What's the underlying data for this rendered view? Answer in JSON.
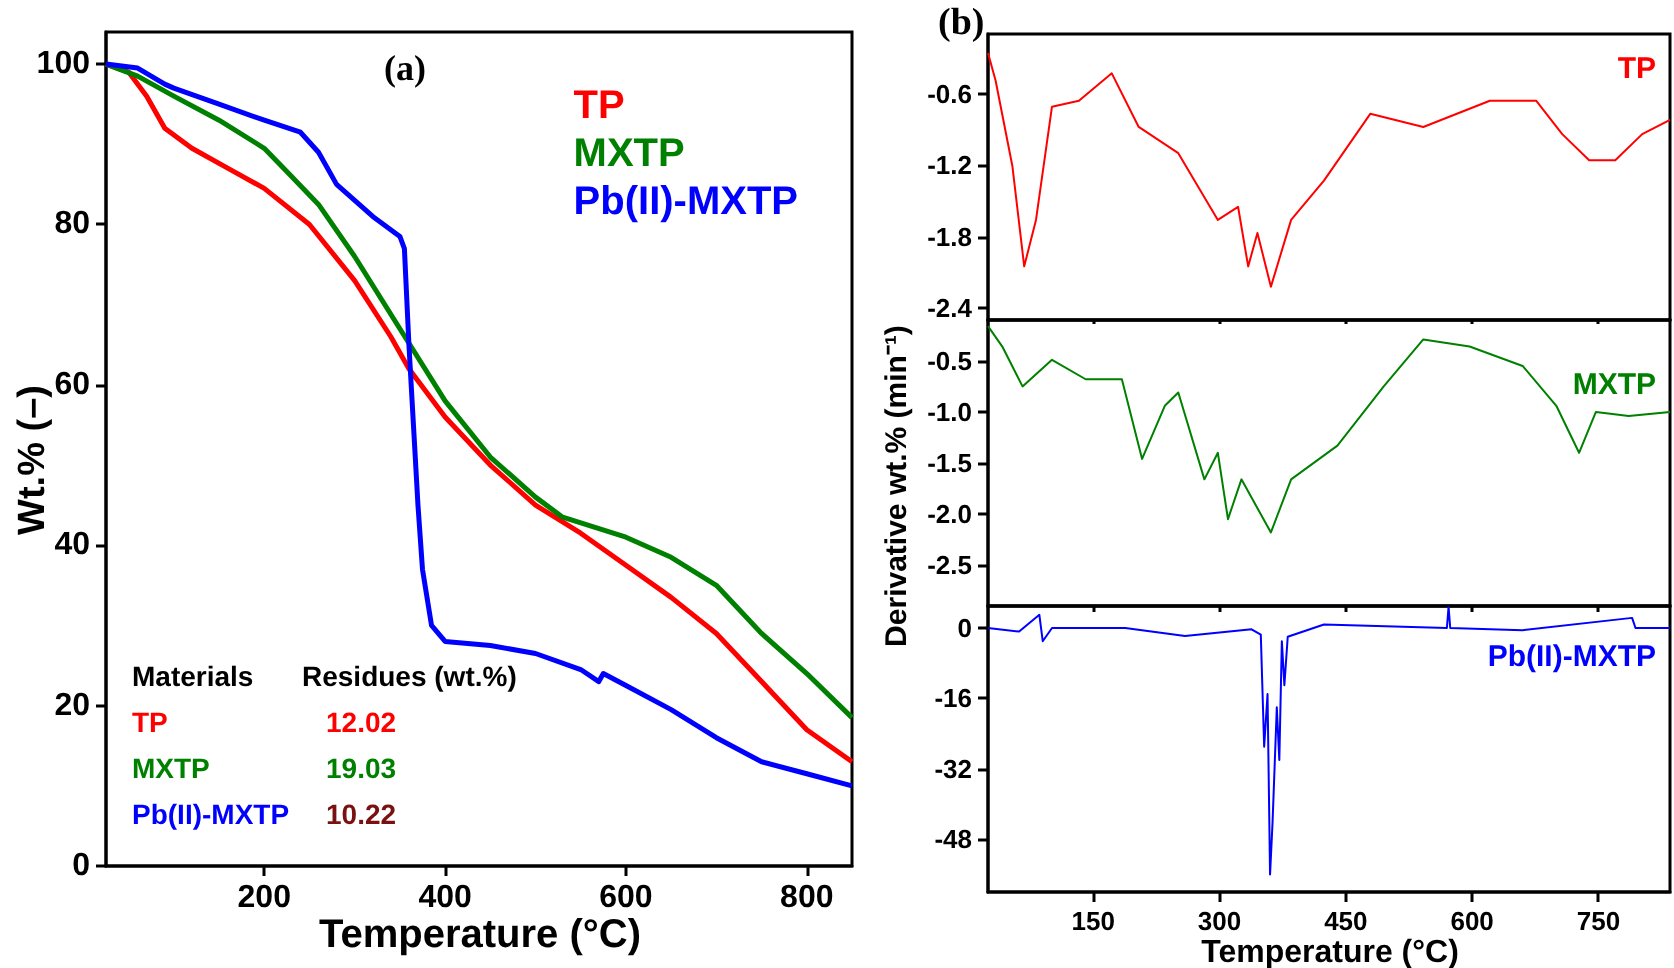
{
  "chart_data": [
    {
      "type": "line",
      "title": "(a)",
      "xlabel": "Temperature (°C)",
      "ylabel": "Wt.% (–)",
      "xlim": [
        25,
        850
      ],
      "ylim": [
        0,
        104
      ],
      "xticks": [
        200,
        400,
        600,
        800
      ],
      "yticks": [
        0,
        20,
        40,
        60,
        80,
        100
      ],
      "grid": false,
      "legend": "top right",
      "marker": "none",
      "annotations": [
        "Materials",
        "Residues (wt.%)",
        "TP",
        "12.02",
        "MXTP",
        "19.03",
        "Pb(II)-MXTP",
        "10.22"
      ],
      "series": [
        {
          "name": "TP",
          "color": "#ff0000",
          "x": [
            25,
            50,
            70,
            90,
            120,
            160,
            200,
            250,
            300,
            340,
            360,
            400,
            450,
            500,
            550,
            600,
            650,
            700,
            750,
            800,
            850
          ],
          "values": [
            100,
            99,
            96,
            92,
            89.5,
            87,
            84.5,
            80,
            73,
            66,
            62,
            56,
            50,
            45,
            41.5,
            37.5,
            33.5,
            29,
            23,
            17,
            13
          ]
        },
        {
          "name": "MXTP",
          "color": "#008000",
          "x": [
            25,
            60,
            100,
            150,
            200,
            230,
            260,
            300,
            350,
            400,
            450,
            500,
            530,
            600,
            650,
            700,
            750,
            800,
            850
          ],
          "values": [
            100,
            98.5,
            96,
            93,
            89.5,
            86,
            82.5,
            76,
            67,
            58,
            51,
            46,
            43.5,
            41,
            38.5,
            35,
            29,
            24,
            18.5
          ]
        },
        {
          "name": "Pb(II)-MXTP",
          "color": "#0000ff",
          "x": [
            25,
            60,
            90,
            100,
            150,
            200,
            240,
            260,
            280,
            320,
            350,
            355,
            360,
            365,
            370,
            375,
            385,
            400,
            450,
            500,
            550,
            570,
            575,
            600,
            650,
            700,
            750,
            800,
            850
          ],
          "values": [
            100,
            99.5,
            97.5,
            97,
            95,
            93,
            91.5,
            89,
            85,
            81,
            78.5,
            77,
            65,
            55,
            45,
            37,
            30,
            28,
            27.5,
            26.5,
            24.5,
            23,
            24,
            22.5,
            19.5,
            16,
            13,
            11.5,
            10
          ]
        }
      ]
    },
    {
      "type": "line",
      "title": "(b)",
      "xlim": [
        25,
        835
      ],
      "ylim": [
        -2.5,
        -0.1
      ],
      "xticks": [
        150,
        300,
        450,
        600,
        750
      ],
      "yticks": [
        -0.6,
        -1.2,
        -1.8,
        -2.4
      ],
      "tick_labels": "y",
      "grid": false,
      "legend": "top right",
      "marker": "none",
      "series": [
        {
          "name": "TP",
          "color": "#ff0000",
          "x": [
            25,
            34,
            54,
            68,
            82,
            101,
            133,
            172,
            204,
            251,
            298,
            322,
            334,
            345,
            361,
            385,
            424,
            479,
            542,
            621,
            676,
            707,
            739,
            770,
            802,
            835
          ],
          "values": [
            -0.26,
            -0.49,
            -1.21,
            -2.05,
            -1.66,
            -0.71,
            -0.66,
            -0.43,
            -0.88,
            -1.1,
            -1.66,
            -1.55,
            -2.05,
            -1.77,
            -2.22,
            -1.66,
            -1.33,
            -0.77,
            -0.88,
            -0.66,
            -0.66,
            -0.94,
            -1.16,
            -1.16,
            -0.94,
            -0.82
          ]
        }
      ]
    },
    {
      "type": "line",
      "ylabel": "Derivative wt.% (min⁻¹)",
      "xlim": [
        25,
        835
      ],
      "ylim": [
        -2.9,
        -0.1
      ],
      "xticks": [
        150,
        300,
        450,
        600,
        750
      ],
      "yticks": [
        -0.5,
        {
          "value": -1,
          "label": "-1.0"
        },
        -1.5,
        {
          "value": -2,
          "label": "-2.0"
        },
        -2.5
      ],
      "tick_labels": "y",
      "grid": false,
      "legend": "top right",
      "marker": "none",
      "series": [
        {
          "name": "MXTP",
          "color": "#008000",
          "x": [
            25,
            42,
            66,
            101,
            141,
            184,
            208,
            235,
            251,
            282,
            298,
            310,
            326,
            361,
            385,
            440,
            495,
            542,
            597,
            660,
            700,
            727,
            747,
            786,
            835
          ],
          "values": [
            -0.16,
            -0.36,
            -0.75,
            -0.49,
            -0.68,
            -0.68,
            -1.46,
            -0.94,
            -0.81,
            -1.66,
            -1.4,
            -2.05,
            -1.66,
            -2.18,
            -1.66,
            -1.33,
            -0.75,
            -0.29,
            -0.36,
            -0.55,
            -0.94,
            -1.4,
            -1,
            -1.04,
            -1
          ]
        }
      ]
    },
    {
      "type": "line",
      "xlabel": "Temperature (°C)",
      "xlim": [
        25,
        835
      ],
      "ylim": [
        -60,
        5
      ],
      "xticks": [
        150,
        300,
        450,
        600,
        750
      ],
      "yticks": [
        0,
        -16,
        -32,
        -48
      ],
      "grid": false,
      "legend": "top right",
      "marker": "none",
      "series": [
        {
          "name": "Pb(II)-MXTP",
          "color": "#0000ff",
          "x": [
            25,
            62,
            86,
            90,
            101,
            188,
            259,
            338,
            349,
            353,
            357,
            360,
            363,
            368,
            371,
            374,
            377,
            381,
            424,
            570,
            572,
            574,
            660,
            790,
            794,
            835
          ],
          "values": [
            0,
            -0.8,
            3,
            -3,
            0,
            0,
            -1.8,
            -0.3,
            -1.5,
            -27,
            -15,
            -56,
            -44,
            -18,
            -30,
            -3,
            -13,
            -2,
            0.8,
            0,
            4.8,
            0,
            -0.5,
            2.3,
            0,
            0
          ]
        }
      ]
    }
  ]
}
